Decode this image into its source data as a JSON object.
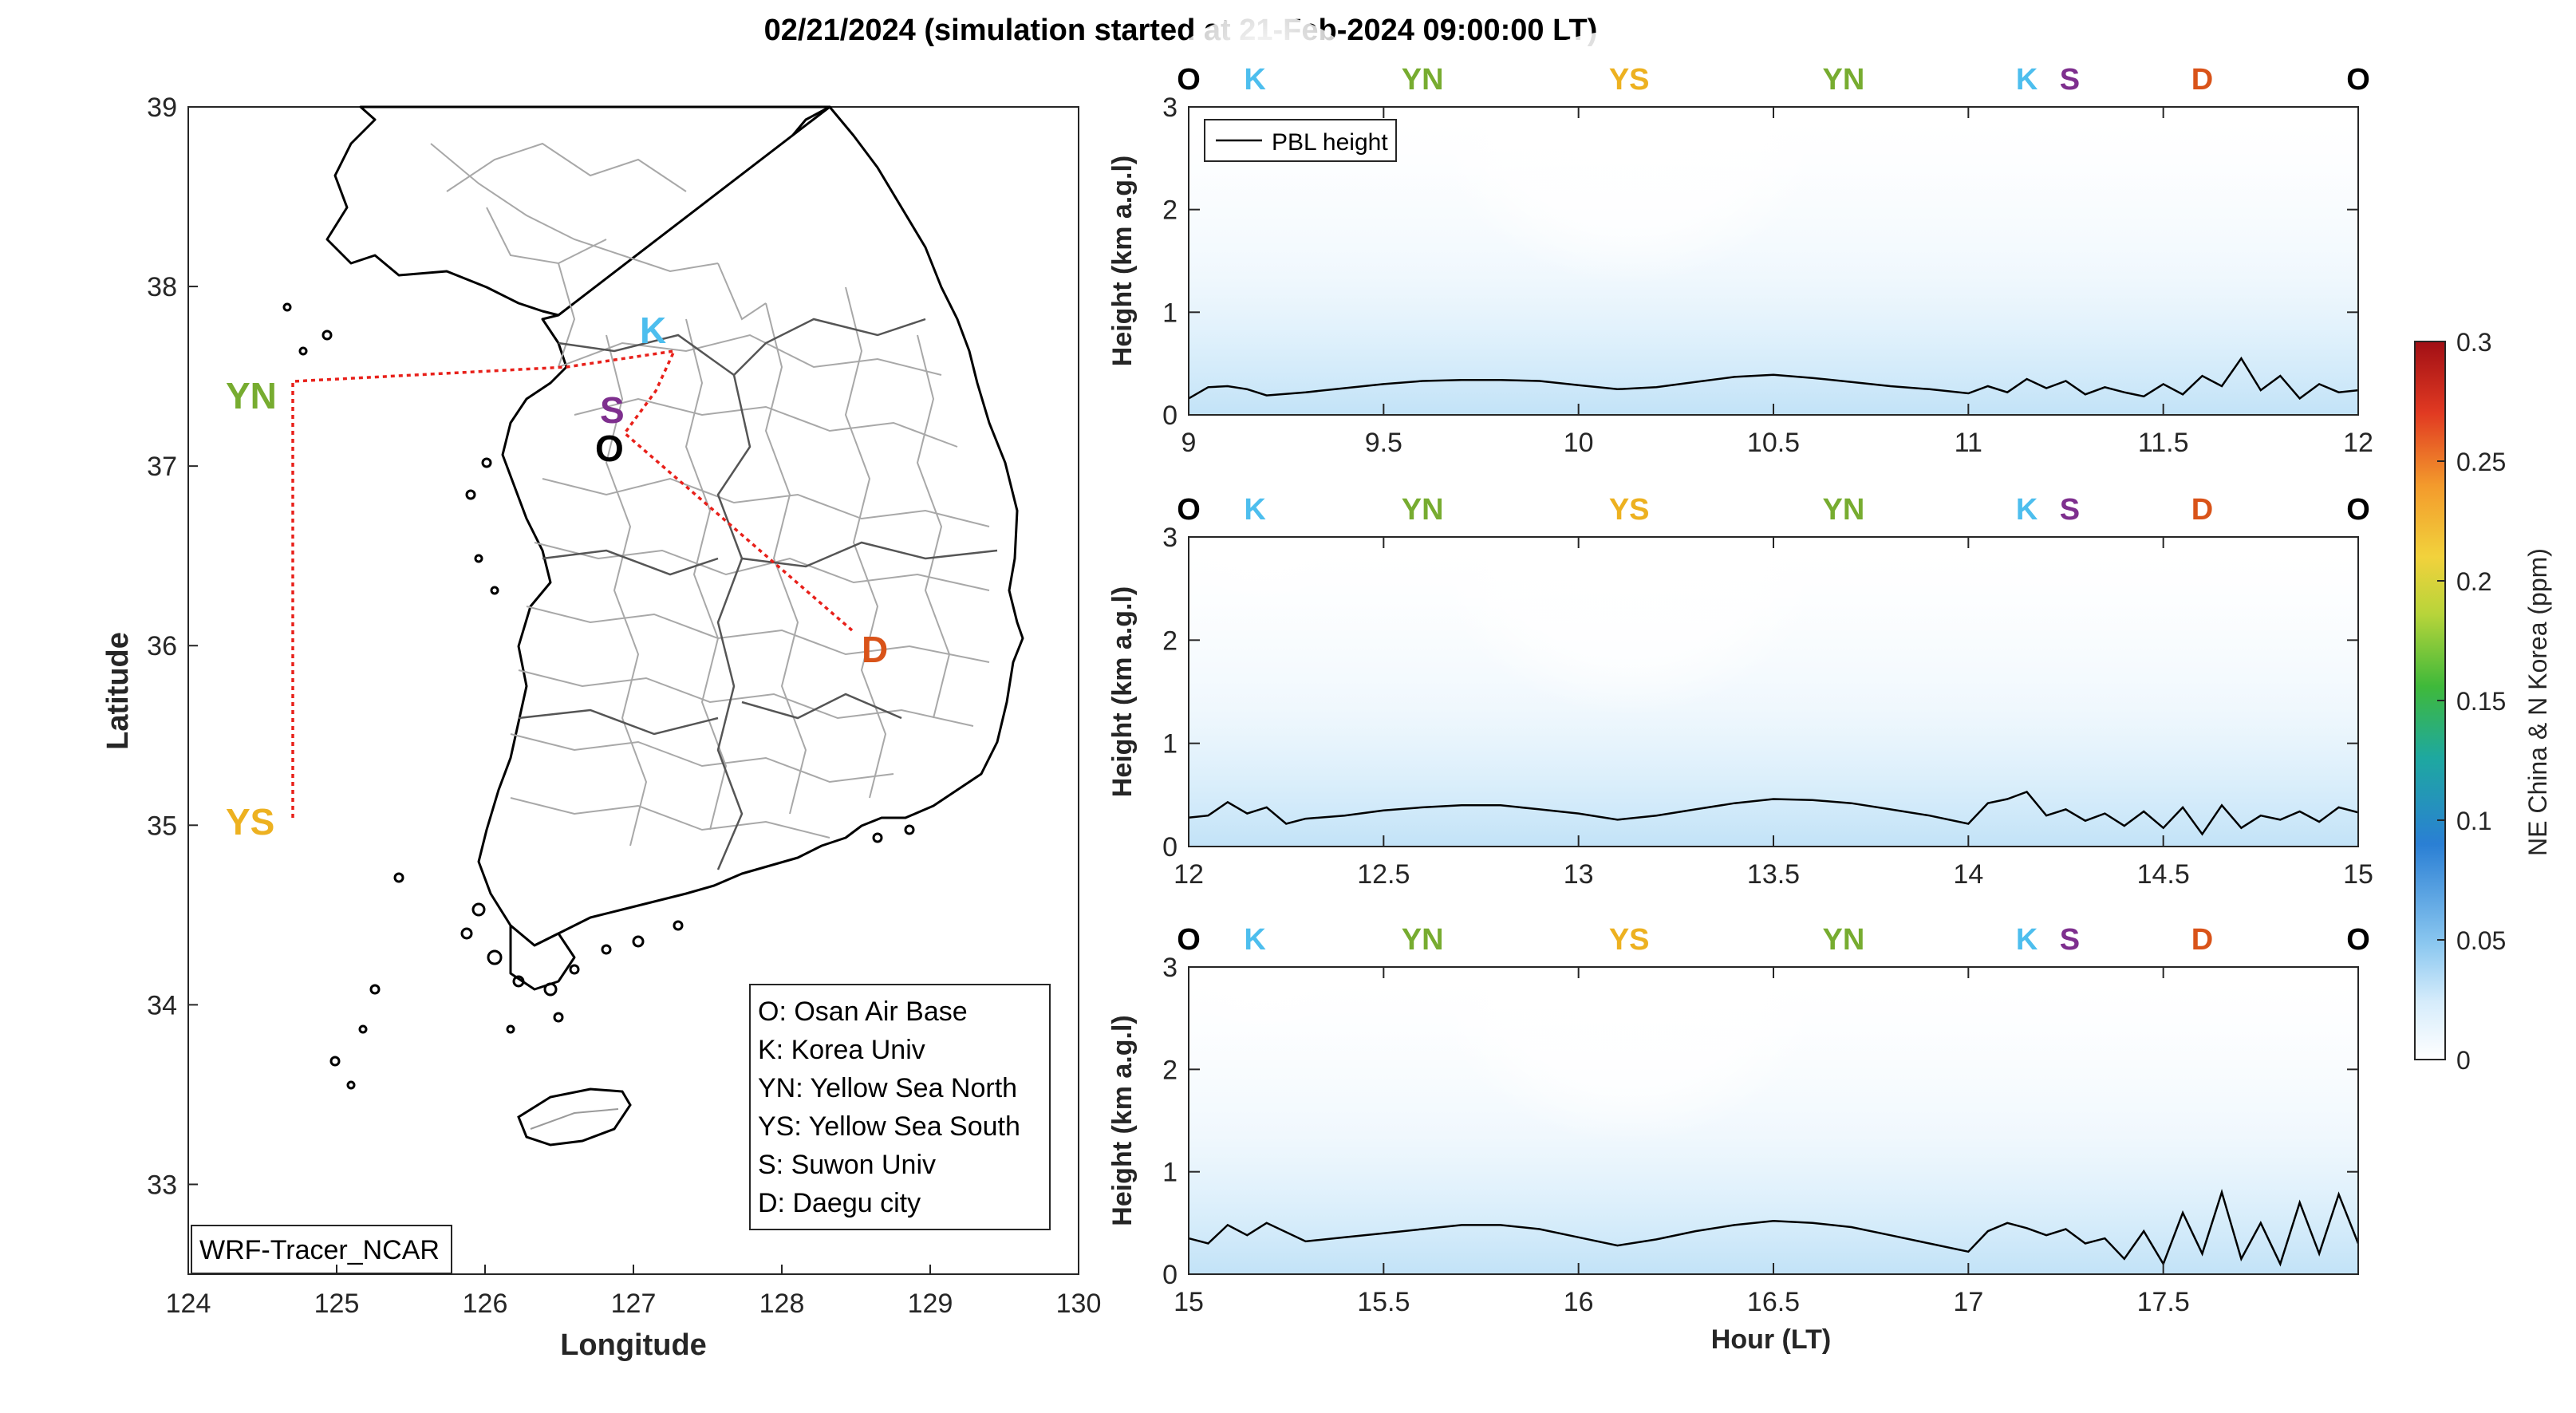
{
  "map": {
    "xlabel": "Longitude",
    "ylabel": "Latitude",
    "xlim": [
      124,
      130
    ],
    "ylim": [
      32.5,
      39
    ],
    "xticks": [
      "124",
      "125",
      "126",
      "127",
      "128",
      "129",
      "130"
    ],
    "yticks": [
      "33",
      "34",
      "35",
      "36",
      "37",
      "38",
      "39"
    ],
    "model_label": "WRF-Tracer_NCAR",
    "sites": [
      {
        "code": "O",
        "lon": 126.85,
        "lat": 37.05,
        "color": "#000000"
      },
      {
        "code": "K",
        "lon": 127.1,
        "lat": 37.7,
        "color": "#4DBEEE"
      },
      {
        "code": "S",
        "lon": 126.85,
        "lat": 37.3,
        "color": "#7E2F8E"
      },
      {
        "code": "YN",
        "lon": 124.5,
        "lat": 37.45,
        "color": "#77AC30"
      },
      {
        "code": "YS",
        "lon": 124.5,
        "lat": 35.05,
        "color": "#EDB120"
      },
      {
        "code": "D",
        "lon": 128.5,
        "lat": 35.95,
        "color": "#D95319"
      }
    ],
    "legend": [
      "O: Osan Air Base",
      "K: Korea Univ",
      "YN: Yellow Sea North",
      "YS: Yellow Sea South",
      "S: Suwon Univ",
      "D: Daegu city"
    ]
  },
  "chart_data": {
    "type": "heatmap",
    "title": "02/21/2024 (simulation started at 21-Feb-2024 09:00:00 LT)",
    "xlabel": "Hour (LT)",
    "ylabel": "Height (km a.g.l)",
    "colorbar": {
      "label": "NE China & N Korea (ppm)",
      "range": [
        0,
        0.3
      ],
      "ticks": [
        "0",
        "0.05",
        "0.1",
        "0.15",
        "0.2",
        "0.25",
        "0.3"
      ],
      "colormap": "jet"
    },
    "legend": {
      "entry": "PBL height",
      "placement": "top-left"
    },
    "track_labels": [
      "O",
      "K",
      "YN",
      "YS",
      "YN",
      "K",
      "S",
      "D",
      "O"
    ],
    "track_colors": [
      "#000000",
      "#4DBEEE",
      "#77AC30",
      "#EDB120",
      "#77AC30",
      "#4DBEEE",
      "#7E2F8E",
      "#D95319",
      "#000000"
    ],
    "panels": [
      {
        "xlim": [
          9,
          12
        ],
        "ylim": [
          0,
          3
        ],
        "xticks": [
          "9",
          "9.5",
          "10",
          "10.5",
          "11",
          "11.5",
          "12"
        ],
        "yticks": [
          "0",
          "1",
          "2",
          "3"
        ],
        "track_x": [
          9,
          9.17,
          9.6,
          10.13,
          10.68,
          11.15,
          11.26,
          11.6,
          12
        ],
        "pbl_hour": [
          9,
          9.05,
          9.1,
          9.15,
          9.2,
          9.3,
          9.4,
          9.5,
          9.6,
          9.7,
          9.8,
          9.9,
          10,
          10.1,
          10.2,
          10.3,
          10.4,
          10.5,
          10.6,
          10.7,
          10.8,
          10.9,
          11,
          11.05,
          11.1,
          11.15,
          11.2,
          11.25,
          11.3,
          11.35,
          11.4,
          11.45,
          11.5,
          11.55,
          11.6,
          11.65,
          11.7,
          11.75,
          11.8,
          11.85,
          11.9,
          11.95,
          12
        ],
        "pbl_km": [
          0.16,
          0.27,
          0.28,
          0.25,
          0.19,
          0.22,
          0.26,
          0.3,
          0.33,
          0.34,
          0.34,
          0.33,
          0.29,
          0.25,
          0.27,
          0.32,
          0.37,
          0.39,
          0.36,
          0.32,
          0.28,
          0.25,
          0.21,
          0.28,
          0.22,
          0.35,
          0.26,
          0.33,
          0.2,
          0.27,
          0.22,
          0.18,
          0.3,
          0.2,
          0.38,
          0.28,
          0.55,
          0.24,
          0.38,
          0.16,
          0.3,
          0.22,
          0.24
        ]
      },
      {
        "xlim": [
          12,
          15
        ],
        "ylim": [
          0,
          3
        ],
        "xticks": [
          "12",
          "12.5",
          "13",
          "13.5",
          "14",
          "14.5",
          "15"
        ],
        "yticks": [
          "0",
          "1",
          "2",
          "3"
        ],
        "track_x": [
          12,
          12.17,
          12.6,
          13.13,
          13.68,
          14.15,
          14.26,
          14.6,
          15
        ],
        "pbl_hour": [
          12,
          12.05,
          12.1,
          12.15,
          12.2,
          12.25,
          12.3,
          12.4,
          12.5,
          12.6,
          12.7,
          12.8,
          12.9,
          13,
          13.1,
          13.2,
          13.3,
          13.4,
          13.5,
          13.6,
          13.7,
          13.8,
          13.9,
          14,
          14.05,
          14.1,
          14.15,
          14.2,
          14.25,
          14.3,
          14.35,
          14.4,
          14.45,
          14.5,
          14.55,
          14.6,
          14.65,
          14.7,
          14.75,
          14.8,
          14.85,
          14.9,
          14.95,
          15
        ],
        "pbl_km": [
          0.28,
          0.3,
          0.43,
          0.32,
          0.38,
          0.22,
          0.27,
          0.3,
          0.35,
          0.38,
          0.4,
          0.4,
          0.36,
          0.32,
          0.26,
          0.3,
          0.36,
          0.42,
          0.46,
          0.45,
          0.42,
          0.36,
          0.3,
          0.22,
          0.42,
          0.46,
          0.53,
          0.3,
          0.36,
          0.25,
          0.32,
          0.2,
          0.34,
          0.18,
          0.38,
          0.12,
          0.4,
          0.18,
          0.3,
          0.26,
          0.34,
          0.24,
          0.38,
          0.33
        ]
      },
      {
        "xlim": [
          15,
          18
        ],
        "ylim": [
          0,
          3
        ],
        "xticks": [
          "15",
          "15.5",
          "16",
          "16.5",
          "17",
          "17.5"
        ],
        "yticks": [
          "0",
          "1",
          "2",
          "3"
        ],
        "track_x": [
          15,
          15.17,
          15.6,
          16.13,
          16.68,
          17.15,
          17.26,
          17.6,
          18
        ],
        "pbl_hour": [
          15,
          15.05,
          15.1,
          15.15,
          15.2,
          15.3,
          15.4,
          15.5,
          15.6,
          15.7,
          15.8,
          15.9,
          16,
          16.1,
          16.2,
          16.3,
          16.4,
          16.5,
          16.6,
          16.7,
          16.8,
          16.9,
          17,
          17.05,
          17.1,
          17.15,
          17.2,
          17.25,
          17.3,
          17.35,
          17.4,
          17.45,
          17.5,
          17.55,
          17.6,
          17.65,
          17.7,
          17.75,
          17.8,
          17.85,
          17.9,
          17.95,
          18
        ],
        "pbl_km": [
          0.35,
          0.3,
          0.48,
          0.38,
          0.5,
          0.32,
          0.36,
          0.4,
          0.44,
          0.48,
          0.48,
          0.44,
          0.36,
          0.28,
          0.34,
          0.42,
          0.48,
          0.52,
          0.5,
          0.46,
          0.38,
          0.3,
          0.22,
          0.42,
          0.5,
          0.45,
          0.38,
          0.44,
          0.3,
          0.35,
          0.15,
          0.42,
          0.1,
          0.6,
          0.2,
          0.8,
          0.15,
          0.5,
          0.1,
          0.7,
          0.2,
          0.78,
          0.3
        ]
      }
    ]
  }
}
